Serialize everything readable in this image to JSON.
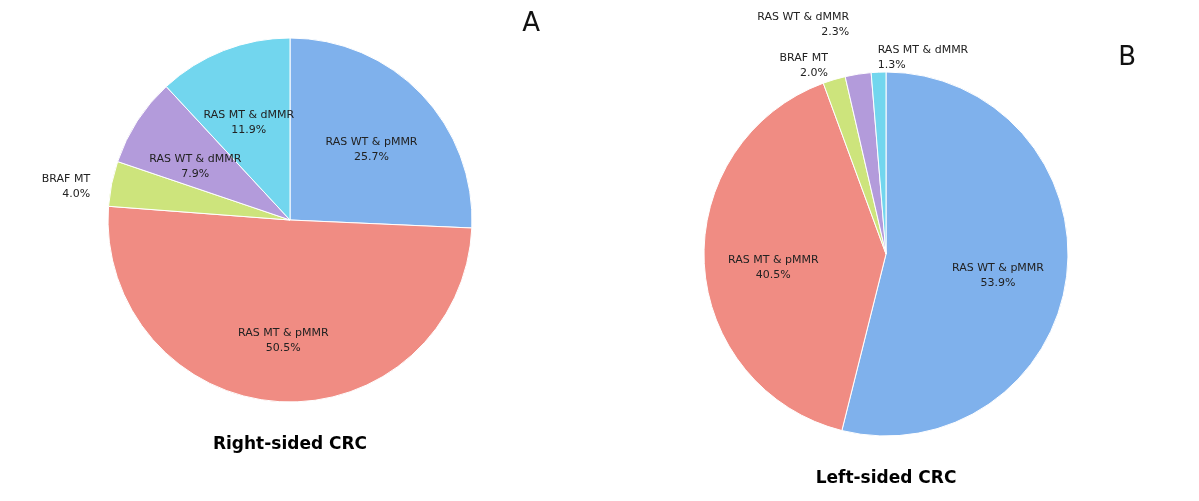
{
  "chart_data": [
    {
      "type": "pie",
      "title": "Right-sided CRC",
      "categories": [
        "RAS WT & pMMR",
        "RAS MT & pMMR",
        "BRAF MT",
        "RAS WT & dMMR",
        "RAS MT & dMMR"
      ],
      "values": [
        25.7,
        50.5,
        4.0,
        7.9,
        11.9
      ],
      "value_labels": [
        "25.7%",
        "50.5%",
        "4.0%",
        "7.9%",
        "11.9%"
      ],
      "colors": [
        "#7fb1ec",
        "#f08c83",
        "#cde47c",
        "#b39bdb",
        "#72d6ee"
      ],
      "annotations": [
        "A"
      ]
    },
    {
      "type": "pie",
      "title": "Left-sided CRC",
      "categories": [
        "RAS WT & pMMR",
        "RAS MT & pMMR",
        "BRAF MT",
        "RAS WT & dMMR",
        "RAS MT & dMMR"
      ],
      "values": [
        53.9,
        40.5,
        2.0,
        2.3,
        1.3
      ],
      "value_labels": [
        "53.9%",
        "40.5%",
        "2.0%",
        "2.3%",
        "1.3%"
      ],
      "colors": [
        "#7fb1ec",
        "#f08c83",
        "#cde47c",
        "#b39bdb",
        "#72d6ee"
      ],
      "annotations": [
        "B"
      ]
    }
  ]
}
